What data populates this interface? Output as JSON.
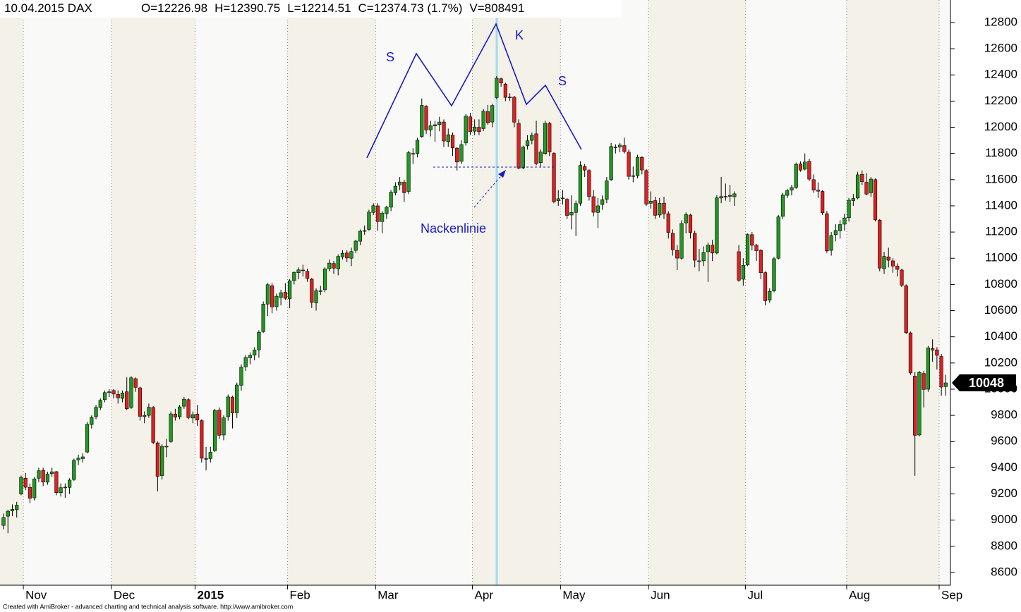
{
  "chart_data": {
    "type": "candlestick",
    "title": "10.04.2015 DAX",
    "header": [
      "O=12226.98",
      "H=12390.75",
      "L=12214.51",
      "C=12374.73 (1.7%)",
      "V=808491"
    ],
    "footer": "Created with AmiBroker - advanced charting and technical analysis software. http://www.amibroker.com",
    "annotations": [
      "S",
      "K",
      "S",
      "Nackenlinie"
    ],
    "last_value_label": "10048",
    "up_color": "#1f9a1f",
    "down_color": "#e02020",
    "grid": "x",
    "ylim": [
      8503,
      12972
    ],
    "yticks": [
      8600,
      8800,
      9000,
      9200,
      9400,
      9600,
      9800,
      10000,
      10200,
      10400,
      10600,
      10800,
      11000,
      11200,
      11400,
      11600,
      11800,
      12000,
      12200,
      12400,
      12600,
      12800
    ],
    "categories": [
      null,
      null,
      null,
      null,
      null,
      "Nov",
      null,
      null,
      null,
      null,
      null,
      null,
      null,
      null,
      null,
      null,
      null,
      null,
      null,
      null,
      null,
      null,
      null,
      null,
      null,
      "Dec",
      null,
      null,
      null,
      null,
      null,
      null,
      null,
      null,
      null,
      null,
      null,
      null,
      null,
      null,
      null,
      null,
      null,
      null,
      "2015",
      null,
      null,
      null,
      null,
      null,
      null,
      null,
      null,
      null,
      null,
      null,
      null,
      null,
      null,
      null,
      null,
      null,
      null,
      null,
      null,
      "Feb",
      null,
      null,
      null,
      null,
      null,
      null,
      null,
      null,
      null,
      null,
      null,
      null,
      null,
      null,
      null,
      null,
      null,
      null,
      null,
      "Mar",
      null,
      null,
      null,
      null,
      null,
      null,
      null,
      null,
      null,
      null,
      null,
      null,
      null,
      null,
      null,
      null,
      null,
      null,
      null,
      null,
      null,
      "Apr",
      null,
      null,
      null,
      null,
      null,
      null,
      null,
      null,
      null,
      null,
      null,
      null,
      null,
      null,
      null,
      null,
      null,
      null,
      null,
      "May",
      null,
      null,
      null,
      null,
      null,
      null,
      null,
      null,
      null,
      null,
      null,
      null,
      null,
      null,
      null,
      null,
      null,
      null,
      null,
      "Jun",
      null,
      null,
      null,
      null,
      null,
      null,
      null,
      null,
      null,
      null,
      null,
      null,
      null,
      null,
      null,
      null,
      null,
      null,
      null,
      null,
      null,
      "Jul",
      null,
      null,
      null,
      null,
      null,
      null,
      null,
      null,
      null,
      null,
      null,
      null,
      null,
      null,
      null,
      null,
      null,
      null,
      null,
      null,
      null,
      null,
      "Aug",
      null,
      null,
      null,
      null,
      null,
      null,
      null,
      null,
      null,
      null,
      null,
      null,
      null,
      null,
      null,
      null,
      null,
      null,
      null,
      null,
      "Sep",
      null
    ],
    "ohlc": [
      [
        8960,
        9050,
        8930,
        9020
      ],
      [
        9030,
        9080,
        8900,
        9068
      ],
      [
        9070,
        9120,
        9030,
        9082
      ],
      [
        9080,
        9140,
        9020,
        9114
      ],
      [
        9200,
        9340,
        9190,
        9326
      ],
      [
        9320,
        9360,
        9230,
        9251
      ],
      [
        9250,
        9280,
        9130,
        9167
      ],
      [
        9170,
        9330,
        9150,
        9315
      ],
      [
        9320,
        9400,
        9290,
        9377
      ],
      [
        9380,
        9400,
        9260,
        9291
      ],
      [
        9290,
        9370,
        9270,
        9351
      ],
      [
        9355,
        9400,
        9330,
        9369
      ],
      [
        9370,
        9375,
        9190,
        9210
      ],
      [
        9210,
        9280,
        9180,
        9248
      ],
      [
        9250,
        9280,
        9170,
        9252
      ],
      [
        9250,
        9320,
        9200,
        9306
      ],
      [
        9310,
        9470,
        9300,
        9456
      ],
      [
        9460,
        9500,
        9420,
        9473
      ],
      [
        9470,
        9510,
        9440,
        9483
      ],
      [
        9520,
        9750,
        9510,
        9732
      ],
      [
        9730,
        9800,
        9700,
        9785
      ],
      [
        9790,
        9880,
        9770,
        9861
      ],
      [
        9860,
        9930,
        9840,
        9915
      ],
      [
        9920,
        9990,
        9900,
        9974
      ],
      [
        9975,
        10000,
        9940,
        9980
      ],
      [
        9990,
        10000,
        9930,
        9963
      ],
      [
        9960,
        9990,
        9890,
        9934
      ],
      [
        9930,
        9990,
        9900,
        9971
      ],
      [
        9980,
        10090,
        9840,
        9851
      ],
      [
        9860,
        10100,
        9850,
        10087
      ],
      [
        10080,
        10090,
        9980,
        10014
      ],
      [
        10010,
        10020,
        9760,
        9793
      ],
      [
        9790,
        9830,
        9740,
        9800
      ],
      [
        9800,
        9890,
        9780,
        9862
      ],
      [
        9860,
        9870,
        9580,
        9594
      ],
      [
        9590,
        9600,
        9220,
        9335
      ],
      [
        9340,
        9580,
        9310,
        9563
      ],
      [
        9560,
        9620,
        9480,
        9564
      ],
      [
        9600,
        9830,
        9590,
        9811
      ],
      [
        9810,
        9850,
        9760,
        9787
      ],
      [
        9790,
        9880,
        9770,
        9865
      ],
      [
        9870,
        9940,
        9850,
        9922
      ],
      [
        9920,
        9930,
        9770,
        9783
      ],
      [
        9780,
        9830,
        9740,
        9806
      ],
      [
        9810,
        9880,
        9720,
        9765
      ],
      [
        9760,
        9770,
        9440,
        9473
      ],
      [
        9470,
        9560,
        9380,
        9469
      ],
      [
        9470,
        9560,
        9440,
        9518
      ],
      [
        9530,
        9850,
        9520,
        9838
      ],
      [
        9840,
        9860,
        9620,
        9648
      ],
      [
        9650,
        9800,
        9610,
        9781
      ],
      [
        9790,
        9960,
        9760,
        9941
      ],
      [
        9940,
        9950,
        9700,
        9818
      ],
      [
        9820,
        10050,
        9780,
        10032
      ],
      [
        10030,
        10190,
        9990,
        10167
      ],
      [
        10170,
        10260,
        10140,
        10242
      ],
      [
        10240,
        10280,
        10190,
        10257
      ],
      [
        10260,
        10320,
        10220,
        10299
      ],
      [
        10300,
        10450,
        10240,
        10435
      ],
      [
        10440,
        10670,
        10430,
        10649
      ],
      [
        10650,
        10810,
        10560,
        10798
      ],
      [
        10790,
        10810,
        10580,
        10628
      ],
      [
        10630,
        10730,
        10600,
        10710
      ],
      [
        10700,
        10760,
        10640,
        10737
      ],
      [
        10740,
        10810,
        10680,
        10694
      ],
      [
        10690,
        10840,
        10620,
        10828
      ],
      [
        10830,
        10900,
        10800,
        10891
      ],
      [
        10890,
        10930,
        10840,
        10911
      ],
      [
        10910,
        10950,
        10860,
        10905
      ],
      [
        10900,
        10920,
        10820,
        10846
      ],
      [
        10840,
        10850,
        10620,
        10663
      ],
      [
        10660,
        10770,
        10600,
        10752
      ],
      [
        10750,
        10790,
        10720,
        10752
      ],
      [
        10760,
        10930,
        10740,
        10919
      ],
      [
        10920,
        10990,
        10900,
        10963
      ],
      [
        10960,
        10980,
        10880,
        10924
      ],
      [
        10920,
        11030,
        10870,
        11014
      ],
      [
        11010,
        11060,
        10990,
        11037
      ],
      [
        11040,
        11060,
        10970,
        11002
      ],
      [
        11000,
        11080,
        10940,
        11051
      ],
      [
        11060,
        11140,
        11040,
        11131
      ],
      [
        11130,
        11220,
        11100,
        11206
      ],
      [
        11210,
        11250,
        11180,
        11211
      ],
      [
        11220,
        11370,
        11210,
        11352
      ],
      [
        11350,
        11420,
        11330,
        11401
      ],
      [
        11400,
        11420,
        11210,
        11280
      ],
      [
        11280,
        11360,
        11190,
        11345
      ],
      [
        11340,
        11400,
        11300,
        11390
      ],
      [
        11390,
        11520,
        11360,
        11504
      ],
      [
        11500,
        11580,
        11480,
        11550
      ],
      [
        11560,
        11620,
        11520,
        11582
      ],
      [
        11580,
        11600,
        11430,
        11500
      ],
      [
        11510,
        11820,
        11490,
        11806
      ],
      [
        11800,
        11840,
        11720,
        11799
      ],
      [
        11800,
        11920,
        11770,
        11901
      ],
      [
        11930,
        12220,
        11920,
        12167
      ],
      [
        12160,
        12170,
        11950,
        11980
      ],
      [
        11980,
        12050,
        11930,
        12012
      ],
      [
        12010,
        12050,
        11890,
        12019
      ],
      [
        12020,
        12080,
        11970,
        12040
      ],
      [
        12040,
        12060,
        11850,
        11895
      ],
      [
        11890,
        11990,
        11850,
        11943
      ],
      [
        11940,
        11960,
        11780,
        11843
      ],
      [
        11840,
        11850,
        11670,
        11735
      ],
      [
        11740,
        11900,
        11720,
        11868
      ],
      [
        11880,
        12100,
        11860,
        12086
      ],
      [
        12080,
        12110,
        11940,
        11966
      ],
      [
        11970,
        12060,
        11940,
        12002
      ],
      [
        12000,
        12060,
        11940,
        11967
      ],
      [
        11990,
        12140,
        11970,
        12123
      ],
      [
        12120,
        12170,
        12020,
        12035
      ],
      [
        12040,
        12180,
        12000,
        12166
      ],
      [
        12226.98,
        12390.75,
        12214.51,
        12374.73
      ],
      [
        12370,
        12380,
        12310,
        12339
      ],
      [
        12330,
        12340,
        12200,
        12228
      ],
      [
        12230,
        12260,
        12200,
        12231
      ],
      [
        12230,
        12240,
        12000,
        12039
      ],
      [
        12030,
        12060,
        11680,
        11688
      ],
      [
        11690,
        11860,
        11680,
        11849
      ],
      [
        11860,
        11940,
        11830,
        11897
      ],
      [
        11900,
        11960,
        11870,
        11939
      ],
      [
        11950,
        12050,
        11710,
        11723
      ],
      [
        11730,
        11830,
        11700,
        11811
      ],
      [
        11800,
        12050,
        11790,
        12030
      ],
      [
        12030,
        12040,
        11780,
        11811
      ],
      [
        11800,
        11810,
        11420,
        11433
      ],
      [
        11440,
        11520,
        11400,
        11454
      ],
      [
        11460,
        11520,
        11410,
        11455
      ],
      [
        11450,
        11460,
        11300,
        11327
      ],
      [
        11330,
        11480,
        11220,
        11350
      ],
      [
        11350,
        11440,
        11170,
        11417
      ],
      [
        11420,
        11740,
        11400,
        11709
      ],
      [
        11700,
        11720,
        11620,
        11673
      ],
      [
        11670,
        11680,
        11440,
        11472
      ],
      [
        11470,
        11520,
        11320,
        11351
      ],
      [
        11350,
        11460,
        11230,
        11400
      ],
      [
        11410,
        11480,
        11370,
        11447
      ],
      [
        11450,
        11620,
        11420,
        11591
      ],
      [
        11600,
        11880,
        11590,
        11853
      ],
      [
        11850,
        11870,
        11800,
        11848
      ],
      [
        11850,
        11880,
        11810,
        11864
      ],
      [
        11860,
        11920,
        11800,
        11815
      ],
      [
        11810,
        11830,
        11600,
        11625
      ],
      [
        11630,
        11700,
        11580,
        11625
      ],
      [
        11630,
        11790,
        11610,
        11771
      ],
      [
        11770,
        11780,
        11640,
        11674
      ],
      [
        11670,
        11680,
        11400,
        11413
      ],
      [
        11420,
        11510,
        11380,
        11436
      ],
      [
        11440,
        11470,
        11300,
        11328
      ],
      [
        11330,
        11460,
        11310,
        11419
      ],
      [
        11420,
        11470,
        11300,
        11340
      ],
      [
        11340,
        11360,
        11150,
        11197
      ],
      [
        11190,
        11220,
        11020,
        11065
      ],
      [
        11060,
        11100,
        10910,
        11001
      ],
      [
        11000,
        11290,
        10990,
        11265
      ],
      [
        11270,
        11350,
        11190,
        11333
      ],
      [
        11330,
        11340,
        11150,
        11197
      ],
      [
        11190,
        11210,
        10930,
        10985
      ],
      [
        10980,
        11070,
        10900,
        10979
      ],
      [
        10980,
        11090,
        10940,
        11044
      ],
      [
        11050,
        11120,
        10820,
        11100
      ],
      [
        11100,
        11140,
        10980,
        11040
      ],
      [
        11040,
        11480,
        11030,
        11461
      ],
      [
        11460,
        11620,
        11420,
        11471
      ],
      [
        11470,
        11570,
        11440,
        11472
      ],
      [
        11480,
        11560,
        11430,
        11473
      ],
      [
        11470,
        11510,
        11400,
        11492
      ],
      [
        11050,
        11100,
        10820,
        10832
      ],
      [
        10840,
        11000,
        10790,
        10945
      ],
      [
        10950,
        11190,
        10940,
        11181
      ],
      [
        11180,
        11200,
        11060,
        11099
      ],
      [
        11100,
        11110,
        10980,
        11058
      ],
      [
        11060,
        11070,
        10840,
        10890
      ],
      [
        10890,
        10900,
        10640,
        10676
      ],
      [
        10680,
        10770,
        10660,
        10747
      ],
      [
        10750,
        11010,
        10740,
        10996
      ],
      [
        11000,
        11330,
        10990,
        11316
      ],
      [
        11320,
        11500,
        11300,
        11484
      ],
      [
        11480,
        11530,
        11460,
        11516
      ],
      [
        11520,
        11560,
        11480,
        11540
      ],
      [
        11540,
        11730,
        11530,
        11717
      ],
      [
        11720,
        11740,
        11660,
        11673
      ],
      [
        11680,
        11800,
        11670,
        11735
      ],
      [
        11740,
        11760,
        11590,
        11604
      ],
      [
        11600,
        11640,
        11500,
        11520
      ],
      [
        11520,
        11580,
        11460,
        11512
      ],
      [
        11510,
        11520,
        11330,
        11347
      ],
      [
        11340,
        11360,
        11040,
        11056
      ],
      [
        11060,
        11200,
        11020,
        11173
      ],
      [
        11180,
        11260,
        11130,
        11212
      ],
      [
        11210,
        11290,
        11150,
        11257
      ],
      [
        11260,
        11340,
        11210,
        11308
      ],
      [
        11310,
        11460,
        11280,
        11443
      ],
      [
        11440,
        11490,
        11400,
        11456
      ],
      [
        11460,
        11660,
        11450,
        11637
      ],
      [
        11640,
        11670,
        11560,
        11585
      ],
      [
        11580,
        11650,
        11480,
        11490
      ],
      [
        11500,
        11620,
        11470,
        11604
      ],
      [
        11600,
        11610,
        11280,
        11293
      ],
      [
        11290,
        11300,
        10900,
        10925
      ],
      [
        10920,
        11050,
        10880,
        11014
      ],
      [
        11010,
        11080,
        10930,
        10985
      ],
      [
        10980,
        11000,
        10890,
        10940
      ],
      [
        10940,
        10960,
        10860,
        10915
      ],
      [
        10910,
        10920,
        10780,
        10794
      ],
      [
        10790,
        10800,
        10420,
        10432
      ],
      [
        10430,
        10440,
        10110,
        10124
      ],
      [
        10100,
        10130,
        9338,
        9648
      ],
      [
        9650,
        10140,
        9640,
        10128
      ],
      [
        10120,
        10140,
        9860,
        9998
      ],
      [
        10000,
        10330,
        9980,
        10315
      ],
      [
        10310,
        10380,
        10210,
        10298
      ],
      [
        10300,
        10320,
        10150,
        10259
      ],
      [
        10250,
        10270,
        9950,
        10016
      ],
      [
        10020,
        10110,
        9950,
        10048
      ]
    ]
  }
}
